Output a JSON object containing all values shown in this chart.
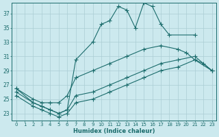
{
  "xlabel": "Humidex (Indice chaleur)",
  "background_color": "#cce9ee",
  "grid_color": "#aacdd4",
  "line_color": "#1a6b6b",
  "xlim": [
    -0.5,
    23.5
  ],
  "ylim": [
    22,
    38.5
  ],
  "yticks": [
    23,
    25,
    27,
    29,
    31,
    33,
    35,
    37
  ],
  "xticks": [
    0,
    1,
    2,
    3,
    4,
    5,
    6,
    7,
    8,
    9,
    10,
    11,
    12,
    13,
    14,
    15,
    16,
    17,
    18,
    19,
    20,
    21,
    22,
    23
  ],
  "series": [
    {
      "x": [
        0,
        2,
        3,
        4,
        5,
        6,
        7,
        9,
        10,
        11,
        12,
        13,
        14,
        15,
        16,
        17,
        18,
        21
      ],
      "y": [
        26.5,
        24.5,
        24.0,
        23.5,
        23.0,
        23.5,
        30.5,
        33.0,
        35.5,
        36.0,
        38.0,
        37.5,
        35.0,
        38.5,
        38.0,
        35.5,
        34.0,
        34.0
      ]
    },
    {
      "x": [
        0,
        2,
        3,
        4,
        5,
        6,
        7,
        9,
        11,
        13,
        15,
        17,
        19,
        20,
        21,
        22,
        23
      ],
      "y": [
        26.5,
        25.0,
        24.5,
        24.5,
        24.5,
        25.5,
        28.0,
        29.0,
        30.0,
        31.0,
        32.0,
        32.5,
        32.0,
        31.5,
        30.5,
        30.0,
        29.0
      ]
    },
    {
      "x": [
        0,
        2,
        3,
        4,
        5,
        6,
        7,
        9,
        11,
        13,
        15,
        17,
        19,
        21,
        23
      ],
      "y": [
        26.0,
        24.5,
        24.0,
        23.5,
        23.0,
        23.5,
        25.5,
        26.0,
        27.0,
        28.0,
        29.0,
        30.0,
        30.5,
        31.0,
        29.0
      ]
    },
    {
      "x": [
        0,
        2,
        3,
        4,
        5,
        6,
        7,
        9,
        11,
        13,
        15,
        17,
        19,
        21,
        23
      ],
      "y": [
        25.5,
        24.0,
        23.5,
        23.0,
        22.5,
        23.0,
        24.5,
        25.0,
        26.0,
        27.0,
        28.0,
        29.0,
        29.5,
        30.5,
        29.0
      ]
    }
  ]
}
